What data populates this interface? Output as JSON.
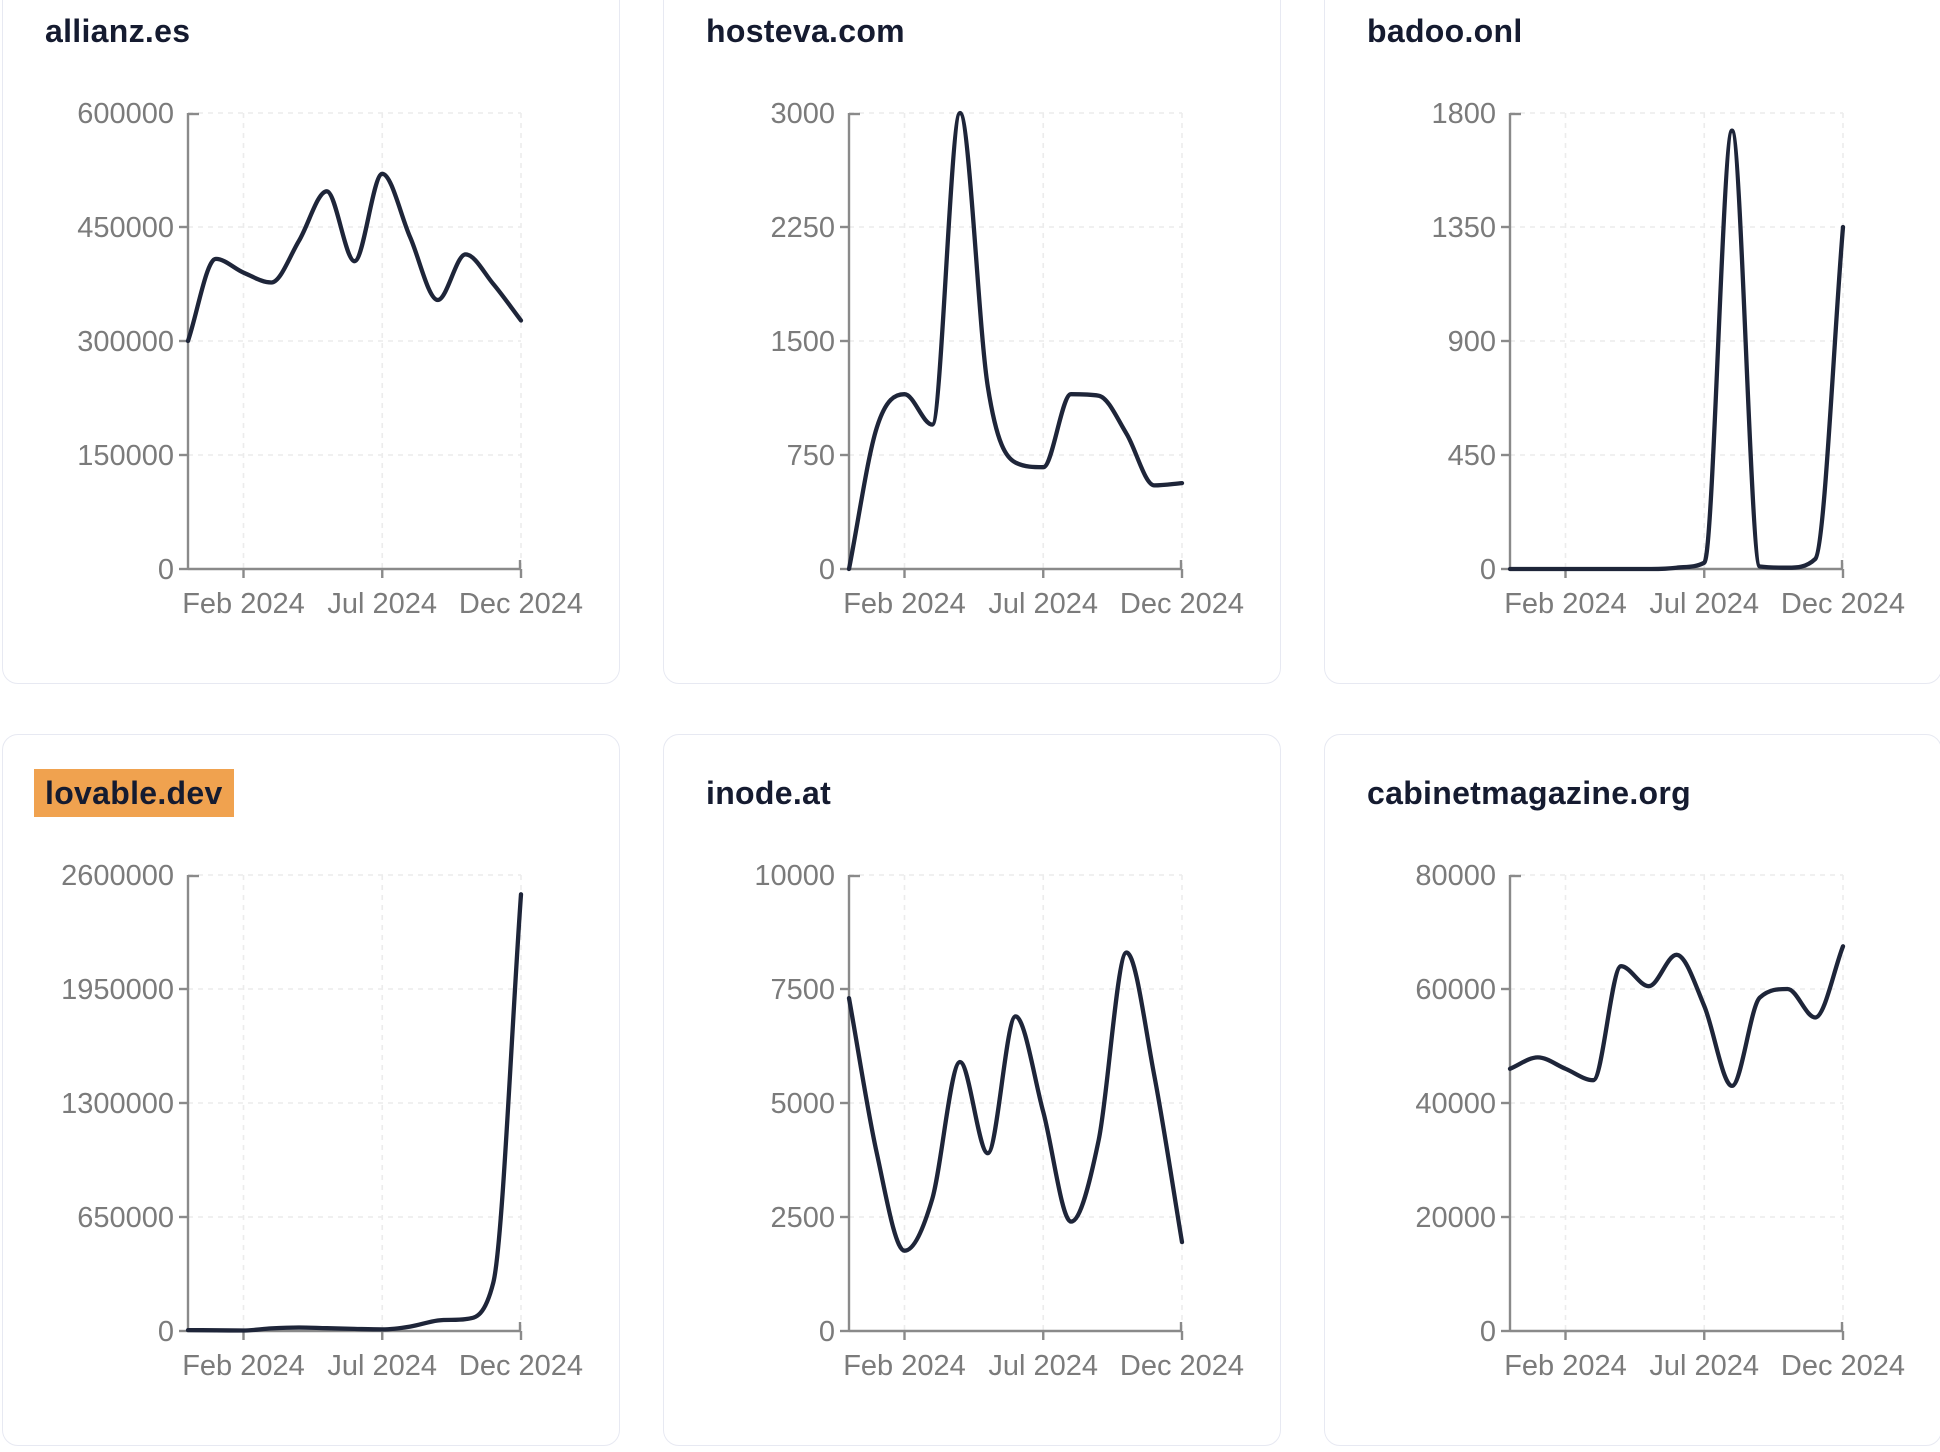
{
  "page": {
    "background": "#ffffff",
    "description": "Dashboard grid of six domain traffic sparkline charts for year 2024"
  },
  "style": {
    "line_color": "#1e2539",
    "title_color": "#151b30",
    "tick_label_color": "#7b7b7b",
    "axis_color": "#8a8a8a",
    "grid_color": "#ececec",
    "card_border_color": "#e7e9f2",
    "highlight_color": "#f0a24f"
  },
  "chart_data": [
    {
      "type": "line",
      "title": "allianz.es",
      "highlighted": false,
      "x": [
        "Dec 2023",
        "Jan 2024",
        "Feb 2024",
        "Mar 2024",
        "Apr 2024",
        "May 2024",
        "Jun 2024",
        "Jul 2024",
        "Aug 2024",
        "Sep 2024",
        "Oct 2024",
        "Nov 2024",
        "Dec 2024"
      ],
      "values": [
        300000,
        408000,
        390000,
        377000,
        432000,
        497000,
        405000,
        520000,
        437000,
        354000,
        414000,
        375000,
        327000
      ],
      "y_ticks": [
        600000,
        450000,
        300000,
        150000,
        0
      ],
      "ylim": [
        0,
        600000
      ],
      "x_tick_labels": [
        "Feb 2024",
        "Jul 2024",
        "Dec 2024"
      ],
      "x_tick_indices": [
        2,
        7,
        12
      ],
      "grid": true,
      "legend": false
    },
    {
      "type": "line",
      "title": "hosteva.com",
      "highlighted": false,
      "x": [
        "Dec 2023",
        "Jan 2024",
        "Feb 2024",
        "Mar 2024",
        "Apr 2024",
        "May 2024",
        "Jun 2024",
        "Jul 2024",
        "Aug 2024",
        "Sep 2024",
        "Oct 2024",
        "Nov 2024",
        "Dec 2024"
      ],
      "values": [
        0,
        930,
        1150,
        950,
        3000,
        1200,
        700,
        670,
        1150,
        1140,
        890,
        550,
        565
      ],
      "y_ticks": [
        3000,
        2250,
        1500,
        750,
        0
      ],
      "ylim": [
        0,
        3000
      ],
      "x_tick_labels": [
        "Feb 2024",
        "Jul 2024",
        "Dec 2024"
      ],
      "x_tick_indices": [
        2,
        7,
        12
      ],
      "grid": true,
      "legend": false
    },
    {
      "type": "line",
      "title": "badoo.onl",
      "highlighted": false,
      "x": [
        "Dec 2023",
        "Jan 2024",
        "Feb 2024",
        "Mar 2024",
        "Apr 2024",
        "May 2024",
        "Jun 2024",
        "Jul 2024",
        "Aug 2024",
        "Sep 2024",
        "Oct 2024",
        "Nov 2024",
        "Dec 2024"
      ],
      "values": [
        0,
        0,
        0,
        0,
        0,
        0,
        5,
        25,
        1730,
        10,
        5,
        40,
        1350
      ],
      "y_ticks": [
        1800,
        1350,
        900,
        450,
        0
      ],
      "ylim": [
        0,
        1800
      ],
      "x_tick_labels": [
        "Feb 2024",
        "Jul 2024",
        "Dec 2024"
      ],
      "x_tick_indices": [
        2,
        7,
        12
      ],
      "grid": true,
      "legend": false
    },
    {
      "type": "line",
      "title": "lovable.dev",
      "highlighted": true,
      "x": [
        "Dec 2023",
        "Jan 2024",
        "Feb 2024",
        "Mar 2024",
        "Apr 2024",
        "May 2024",
        "Jun 2024",
        "Jul 2024",
        "Aug 2024",
        "Sep 2024",
        "Oct 2024",
        "Nov 2024",
        "Dec 2024"
      ],
      "values": [
        5000,
        4000,
        3000,
        15000,
        20000,
        16000,
        12000,
        9000,
        25000,
        60000,
        68000,
        276000,
        2490000
      ],
      "y_ticks": [
        2600000,
        1950000,
        1300000,
        650000,
        0
      ],
      "ylim": [
        0,
        2600000
      ],
      "x_tick_labels": [
        "Feb 2024",
        "Jul 2024",
        "Dec 2024"
      ],
      "x_tick_indices": [
        2,
        7,
        12
      ],
      "grid": true,
      "legend": false
    },
    {
      "type": "line",
      "title": "inode.at",
      "highlighted": false,
      "x": [
        "Dec 2023",
        "Jan 2024",
        "Feb 2024",
        "Mar 2024",
        "Apr 2024",
        "May 2024",
        "Jun 2024",
        "Jul 2024",
        "Aug 2024",
        "Sep 2024",
        "Oct 2024",
        "Nov 2024",
        "Dec 2024"
      ],
      "values": [
        7300,
        3900,
        1760,
        2900,
        5900,
        3900,
        6900,
        4800,
        2400,
        4200,
        8300,
        5600,
        1950
      ],
      "y_ticks": [
        10000,
        7500,
        5000,
        2500,
        0
      ],
      "ylim": [
        0,
        10000
      ],
      "x_tick_labels": [
        "Feb 2024",
        "Jul 2024",
        "Dec 2024"
      ],
      "x_tick_indices": [
        2,
        7,
        12
      ],
      "grid": true,
      "legend": false
    },
    {
      "type": "line",
      "title": "cabinetmagazine.org",
      "highlighted": false,
      "x": [
        "Dec 2023",
        "Jan 2024",
        "Feb 2024",
        "Mar 2024",
        "Apr 2024",
        "May 2024",
        "Jun 2024",
        "Jul 2024",
        "Aug 2024",
        "Sep 2024",
        "Oct 2024",
        "Nov 2024",
        "Dec 2024"
      ],
      "values": [
        46000,
        48000,
        46000,
        44000,
        64000,
        60500,
        66000,
        57000,
        43000,
        58500,
        60000,
        55000,
        67500
      ],
      "y_ticks": [
        80000,
        60000,
        40000,
        20000,
        0
      ],
      "ylim": [
        0,
        80000
      ],
      "x_tick_labels": [
        "Feb 2024",
        "Jul 2024",
        "Dec 2024"
      ],
      "x_tick_indices": [
        2,
        7,
        12
      ],
      "grid": true,
      "legend": false
    }
  ]
}
